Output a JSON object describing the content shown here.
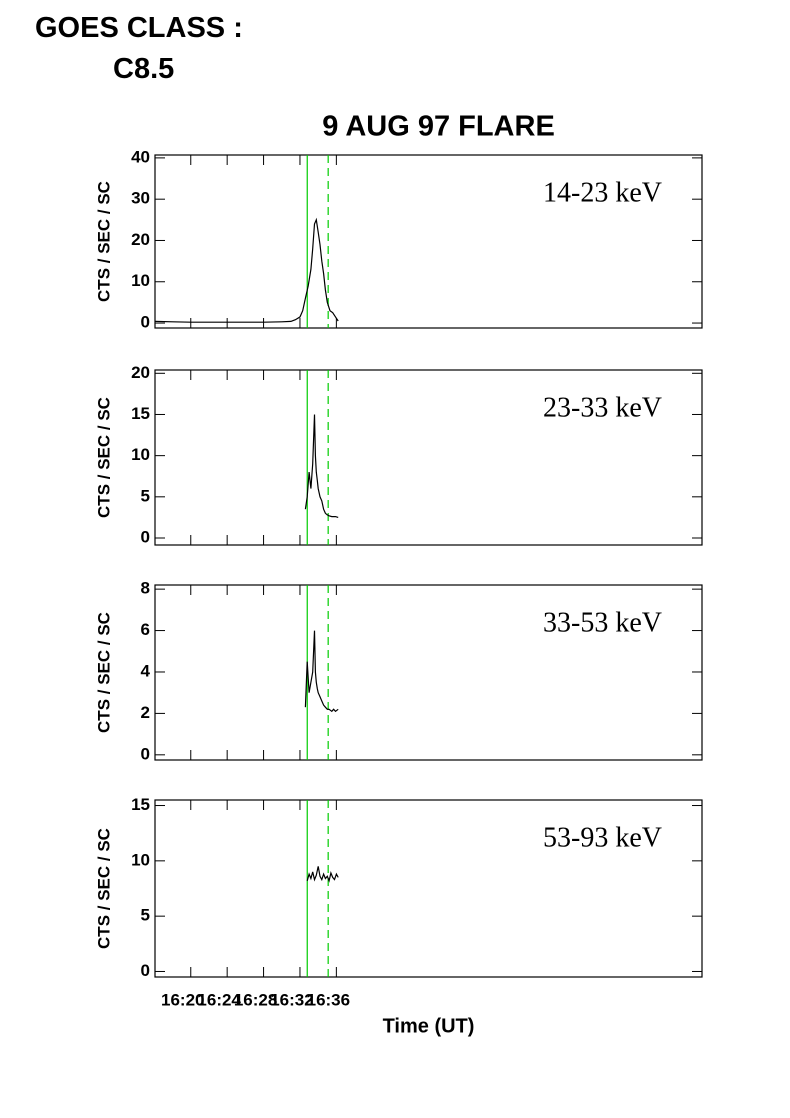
{
  "header": {
    "line1": "GOES CLASS :",
    "line2": "C8.5"
  },
  "chart_data": [
    {
      "type": "line",
      "title": "9 AUG 97 FLARE",
      "ylabel": "CTS / SEC / SC",
      "xlim": [
        976.07,
        1036.18
      ],
      "xticks": [
        980,
        984,
        988,
        992,
        996
      ],
      "ylim": [
        -1.2,
        40.7
      ],
      "yticks": [
        0,
        10,
        20,
        30,
        40
      ],
      "markers": [
        {
          "x": 992.8,
          "color": "#00cc00",
          "dash": false
        },
        {
          "x": 995.1,
          "color": "#00cc00",
          "dash": true
        }
      ],
      "series": [
        {
          "name": "14-23 keV",
          "color": "#000000",
          "x": [
            976.1,
            978,
            980,
            982,
            984,
            986,
            988,
            990,
            991,
            991.5,
            992,
            992.3,
            992.6,
            992.9,
            993.2,
            993.4,
            993.6,
            993.8,
            994.0,
            994.2,
            994.4,
            994.6,
            994.8,
            995.0,
            995.3,
            995.6,
            995.9,
            996.2
          ],
          "values": [
            0.4,
            0.3,
            0.2,
            0.2,
            0.2,
            0.2,
            0.2,
            0.3,
            0.4,
            0.8,
            1.5,
            3,
            6,
            9,
            13,
            18,
            24,
            25,
            22,
            19,
            15,
            12,
            8,
            5,
            3,
            2.5,
            1.5,
            0.5
          ]
        }
      ]
    },
    {
      "type": "line",
      "ylabel": "CTS / SEC / SC",
      "xlim": [
        976.07,
        1036.18
      ],
      "xticks": [
        980,
        984,
        988,
        992,
        996
      ],
      "ylim": [
        -0.85,
        20.4
      ],
      "yticks": [
        0,
        5,
        10,
        15,
        20
      ],
      "markers": [
        {
          "x": 992.8,
          "color": "#00cc00",
          "dash": false
        },
        {
          "x": 995.1,
          "color": "#00cc00",
          "dash": true
        }
      ],
      "series": [
        {
          "name": "23-33 keV",
          "color": "#000000",
          "x": [
            992.6,
            992.8,
            993.0,
            993.2,
            993.4,
            993.6,
            993.7,
            993.8,
            993.9,
            994.0,
            994.2,
            994.4,
            994.6,
            994.8,
            995.0,
            995.2,
            995.5,
            995.7,
            995.9,
            996.2
          ],
          "values": [
            3.5,
            5,
            8,
            6,
            9,
            15,
            10,
            8,
            7,
            6,
            5,
            4.5,
            3.5,
            3,
            2.8,
            2.7,
            2.6,
            2.6,
            2.6,
            2.5
          ]
        }
      ]
    },
    {
      "type": "line",
      "ylabel": "CTS / SEC / SC",
      "xlim": [
        976.07,
        1036.18
      ],
      "xticks": [
        980,
        984,
        988,
        992,
        996
      ],
      "ylim": [
        -0.25,
        8.2
      ],
      "yticks": [
        0,
        2,
        4,
        6,
        8
      ],
      "markers": [
        {
          "x": 992.8,
          "color": "#00cc00",
          "dash": false
        },
        {
          "x": 995.1,
          "color": "#00cc00",
          "dash": true
        }
      ],
      "series": [
        {
          "name": "33-53 keV",
          "color": "#000000",
          "x": [
            992.6,
            992.8,
            993.0,
            993.2,
            993.4,
            993.6,
            993.7,
            993.8,
            993.9,
            994.0,
            994.2,
            994.4,
            994.6,
            994.8,
            995.0,
            995.2,
            995.5,
            995.7,
            995.9,
            996.2
          ],
          "values": [
            2.3,
            4.5,
            3,
            3.5,
            4,
            6,
            4,
            3.5,
            3.2,
            3,
            2.8,
            2.6,
            2.4,
            2.3,
            2.2,
            2.2,
            2.1,
            2.2,
            2.1,
            2.2
          ]
        }
      ]
    },
    {
      "type": "line",
      "ylabel": "CTS / SEC / SC",
      "xlabel": "Time (UT)",
      "xlim": [
        976.07,
        1036.18
      ],
      "xticks": [
        {
          "value": 980,
          "label": "16:20"
        },
        {
          "value": 984,
          "label": "16:24"
        },
        {
          "value": 988,
          "label": "16:28"
        },
        {
          "value": 992,
          "label": "16:32"
        },
        {
          "value": 996,
          "label": "16:36"
        }
      ],
      "ylim": [
        -0.5,
        15.5
      ],
      "yticks": [
        0,
        5,
        10,
        15
      ],
      "markers": [
        {
          "x": 992.8,
          "color": "#00cc00",
          "dash": false
        },
        {
          "x": 995.1,
          "color": "#00cc00",
          "dash": true
        }
      ],
      "series": [
        {
          "name": "53-93 keV",
          "color": "#000000",
          "x": [
            992.8,
            993.0,
            993.2,
            993.4,
            993.6,
            993.8,
            994.0,
            994.2,
            994.4,
            994.6,
            994.8,
            995.0,
            995.2,
            995.4,
            995.6,
            995.8,
            996.0,
            996.2
          ],
          "values": [
            8.2,
            8.8,
            8.4,
            9.0,
            8.3,
            8.7,
            9.5,
            8.6,
            8.3,
            8.8,
            8.4,
            8.6,
            8.2,
            8.9,
            8.5,
            8.3,
            8.8,
            8.5
          ]
        }
      ]
    }
  ]
}
